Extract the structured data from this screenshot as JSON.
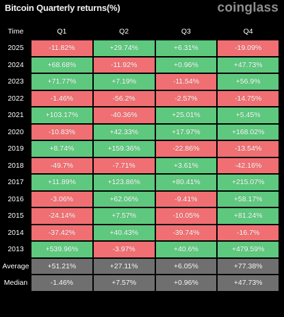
{
  "header": {
    "title": "Bitcoin Quarterly returns(%)",
    "brand": "coinglass"
  },
  "colors": {
    "positive": "#5ec87e",
    "negative": "#ef6f72",
    "stat": "#6f6f6f",
    "background": "#000000"
  },
  "chart_data": {
    "type": "table",
    "title": "Bitcoin Quarterly returns(%)",
    "columns": [
      "Time",
      "Q1",
      "Q2",
      "Q3",
      "Q4"
    ],
    "rows": [
      {
        "label": "2025",
        "values": [
          "-11.82%",
          "+29.74%",
          "+6.31%",
          "-19.09%"
        ]
      },
      {
        "label": "2024",
        "values": [
          "+68.68%",
          "-11.92%",
          "+0.96%",
          "+47.73%"
        ]
      },
      {
        "label": "2023",
        "values": [
          "+71.77%",
          "+7.19%",
          "-11.54%",
          "+56.9%"
        ]
      },
      {
        "label": "2022",
        "values": [
          "-1.46%",
          "-56.2%",
          "-2.57%",
          "-14.75%"
        ]
      },
      {
        "label": "2021",
        "values": [
          "+103.17%",
          "-40.36%",
          "+25.01%",
          "+5.45%"
        ]
      },
      {
        "label": "2020",
        "values": [
          "-10.83%",
          "+42.33%",
          "+17.97%",
          "+168.02%"
        ]
      },
      {
        "label": "2019",
        "values": [
          "+8.74%",
          "+159.36%",
          "-22.86%",
          "-13.54%"
        ]
      },
      {
        "label": "2018",
        "values": [
          "-49.7%",
          "-7.71%",
          "+3.61%",
          "-42.16%"
        ]
      },
      {
        "label": "2017",
        "values": [
          "+11.89%",
          "+123.86%",
          "+80.41%",
          "+215.07%"
        ]
      },
      {
        "label": "2016",
        "values": [
          "-3.06%",
          "+62.06%",
          "-9.41%",
          "+58.17%"
        ]
      },
      {
        "label": "2015",
        "values": [
          "-24.14%",
          "+7.57%",
          "-10.05%",
          "+81.24%"
        ]
      },
      {
        "label": "2014",
        "values": [
          "-37.42%",
          "+40.43%",
          "-39.74%",
          "-16.7%"
        ]
      },
      {
        "label": "2013",
        "values": [
          "+539.96%",
          "-3.97%",
          "+40.6%",
          "+479.59%"
        ]
      }
    ],
    "summary": [
      {
        "label": "Average",
        "values": [
          "+51.21%",
          "+27.11%",
          "+6.05%",
          "+77.38%"
        ]
      },
      {
        "label": "Median",
        "values": [
          "-1.46%",
          "+7.57%",
          "+0.96%",
          "+47.73%"
        ]
      }
    ]
  }
}
